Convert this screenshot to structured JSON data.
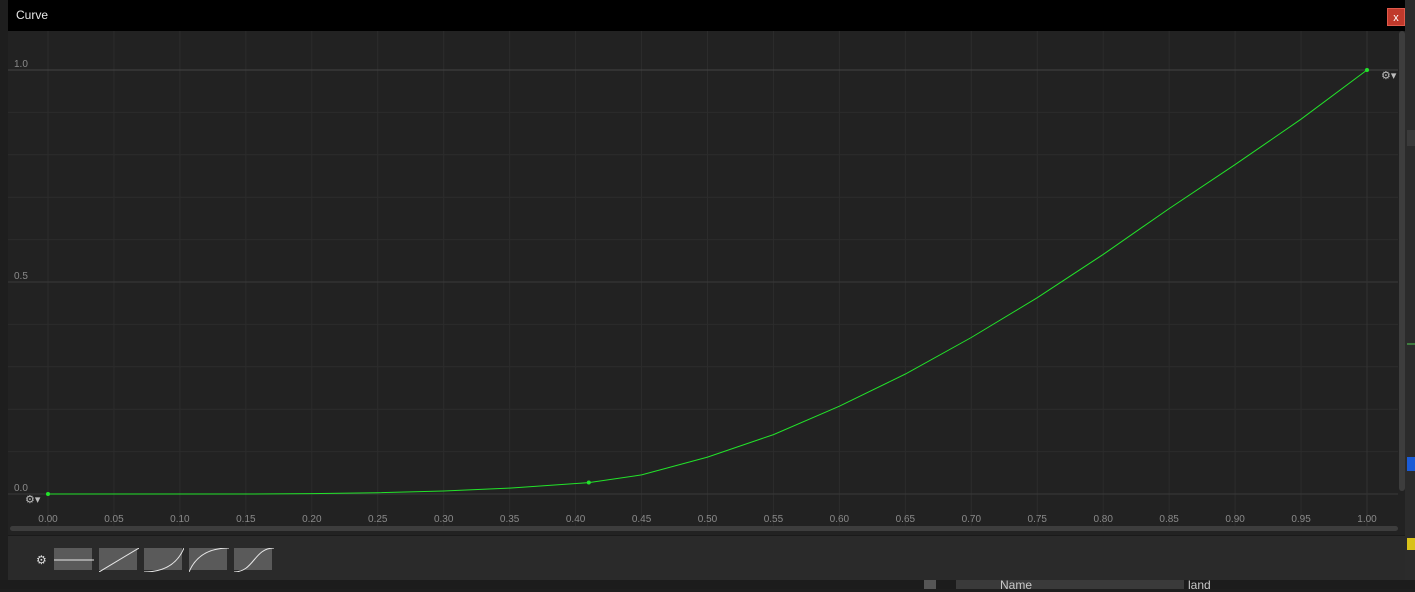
{
  "window": {
    "title": "Curve",
    "close_label": "x"
  },
  "chart_data": {
    "type": "line",
    "xlim": [
      0.0,
      1.0
    ],
    "ylim": [
      0.0,
      1.0
    ],
    "x_ticks": [
      "0.00",
      "0.05",
      "0.10",
      "0.15",
      "0.20",
      "0.25",
      "0.30",
      "0.35",
      "0.40",
      "0.45",
      "0.50",
      "0.55",
      "0.60",
      "0.65",
      "0.70",
      "0.75",
      "0.80",
      "0.85",
      "0.90",
      "0.95",
      "1.00"
    ],
    "y_ticks": [
      "0.0",
      "0.5",
      "1.0"
    ],
    "grid": true,
    "curve_color": "#22e32a",
    "keys": [
      {
        "x": 0.0,
        "y": 0.0
      },
      {
        "x": 0.41,
        "y": 0.027
      },
      {
        "x": 1.0,
        "y": 1.0
      }
    ],
    "series": [
      {
        "x": [
          0.0,
          0.05,
          0.1,
          0.15,
          0.2,
          0.25,
          0.3,
          0.35,
          0.41,
          0.45,
          0.5,
          0.55,
          0.6,
          0.65,
          0.7,
          0.75,
          0.8,
          0.85,
          0.9,
          0.95,
          1.0
        ],
        "y": [
          0.0,
          0.0,
          0.0,
          0.0,
          0.001,
          0.003,
          0.007,
          0.014,
          0.027,
          0.045,
          0.087,
          0.14,
          0.207,
          0.283,
          0.369,
          0.463,
          0.565,
          0.673,
          0.777,
          0.884,
          1.0
        ]
      }
    ]
  },
  "presets": [
    {
      "name": "constant"
    },
    {
      "name": "linear"
    },
    {
      "name": "ease-in"
    },
    {
      "name": "ease-out"
    },
    {
      "name": "ease-in-out"
    }
  ],
  "background": {
    "name_label": "Name",
    "value_label": "land"
  },
  "colors": {
    "titlebar": "#000000",
    "panel": "#222222",
    "grid": "#2e2e2e",
    "close": "#c0392b"
  }
}
